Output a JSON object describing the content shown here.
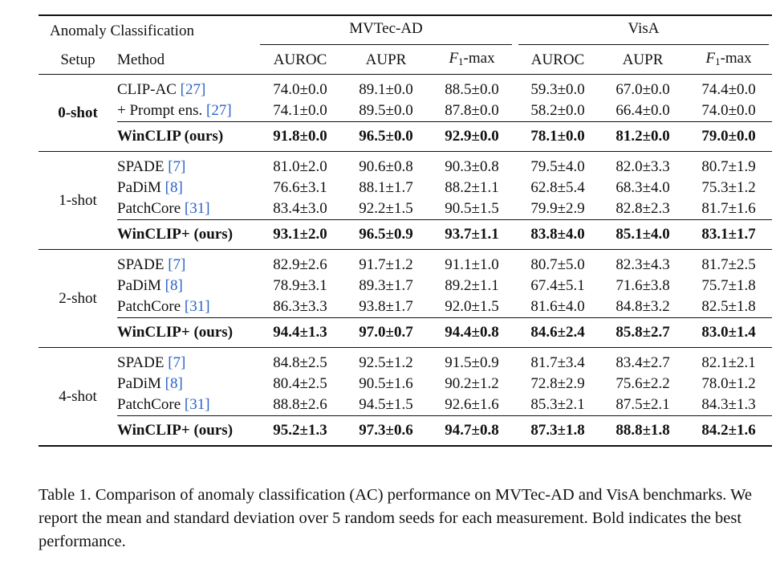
{
  "table": {
    "header": {
      "task_label": "Anomaly Classification",
      "dataset_1": "MVTec-AD",
      "dataset_2": "VisA",
      "setup_label": "Setup",
      "method_label": "Method",
      "metric_auroc": "AUROC",
      "metric_aupr": "AUPR",
      "metric_f1_base": "F",
      "metric_f1_sub": "1",
      "metric_f1_suffix": "-max"
    },
    "groups": [
      {
        "setup": "0-shot",
        "setup_bold": true,
        "rows": [
          {
            "method": "CLIP-AC ",
            "cite": "[27]",
            "vals": [
              "74.0±0.0",
              "89.1±0.0",
              "88.5±0.0",
              "59.3±0.0",
              "67.0±0.0",
              "74.4±0.0"
            ]
          },
          {
            "method": "+ Prompt ens. ",
            "cite": "[27]",
            "vals": [
              "74.1±0.0",
              "89.5±0.0",
              "87.8±0.0",
              "58.2±0.0",
              "66.4±0.0",
              "74.0±0.0"
            ]
          }
        ],
        "best": {
          "method": "WinCLIP (ours)",
          "vals": [
            "91.8±0.0",
            "96.5±0.0",
            "92.9±0.0",
            "78.1±0.0",
            "81.2±0.0",
            "79.0±0.0"
          ]
        }
      },
      {
        "setup": "1-shot",
        "setup_bold": false,
        "rows": [
          {
            "method": "SPADE ",
            "cite": "[7]",
            "vals": [
              "81.0±2.0",
              "90.6±0.8",
              "90.3±0.8",
              "79.5±4.0",
              "82.0±3.3",
              "80.7±1.9"
            ]
          },
          {
            "method": "PaDiM ",
            "cite": "[8]",
            "vals": [
              "76.6±3.1",
              "88.1±1.7",
              "88.2±1.1",
              "62.8±5.4",
              "68.3±4.0",
              "75.3±1.2"
            ]
          },
          {
            "method": "PatchCore ",
            "cite": "[31]",
            "vals": [
              "83.4±3.0",
              "92.2±1.5",
              "90.5±1.5",
              "79.9±2.9",
              "82.8±2.3",
              "81.7±1.6"
            ]
          }
        ],
        "best": {
          "method": "WinCLIP+ (ours)",
          "vals": [
            "93.1±2.0",
            "96.5±0.9",
            "93.7±1.1",
            "83.8±4.0",
            "85.1±4.0",
            "83.1±1.7"
          ]
        }
      },
      {
        "setup": "2-shot",
        "setup_bold": false,
        "rows": [
          {
            "method": "SPADE ",
            "cite": "[7]",
            "vals": [
              "82.9±2.6",
              "91.7±1.2",
              "91.1±1.0",
              "80.7±5.0",
              "82.3±4.3",
              "81.7±2.5"
            ]
          },
          {
            "method": "PaDiM ",
            "cite": "[8]",
            "vals": [
              "78.9±3.1",
              "89.3±1.7",
              "89.2±1.1",
              "67.4±5.1",
              "71.6±3.8",
              "75.7±1.8"
            ]
          },
          {
            "method": "PatchCore ",
            "cite": "[31]",
            "vals": [
              "86.3±3.3",
              "93.8±1.7",
              "92.0±1.5",
              "81.6±4.0",
              "84.8±3.2",
              "82.5±1.8"
            ]
          }
        ],
        "best": {
          "method": "WinCLIP+ (ours)",
          "vals": [
            "94.4±1.3",
            "97.0±0.7",
            "94.4±0.8",
            "84.6±2.4",
            "85.8±2.7",
            "83.0±1.4"
          ]
        }
      },
      {
        "setup": "4-shot",
        "setup_bold": false,
        "rows": [
          {
            "method": "SPADE ",
            "cite": "[7]",
            "vals": [
              "84.8±2.5",
              "92.5±1.2",
              "91.5±0.9",
              "81.7±3.4",
              "83.4±2.7",
              "82.1±2.1"
            ]
          },
          {
            "method": "PaDiM ",
            "cite": "[8]",
            "vals": [
              "80.4±2.5",
              "90.5±1.6",
              "90.2±1.2",
              "72.8±2.9",
              "75.6±2.2",
              "78.0±1.2"
            ]
          },
          {
            "method": "PatchCore ",
            "cite": "[31]",
            "vals": [
              "88.8±2.6",
              "94.5±1.5",
              "92.6±1.6",
              "85.3±2.1",
              "87.5±2.1",
              "84.3±1.3"
            ]
          }
        ],
        "best": {
          "method": "WinCLIP+ (ours)",
          "vals": [
            "95.2±1.3",
            "97.3±0.6",
            "94.7±0.8",
            "87.3±1.8",
            "88.8±1.8",
            "84.2±1.6"
          ]
        }
      }
    ]
  },
  "caption": {
    "text": "Table 1. Comparison of anomaly classification (AC) performance on MVTec-AD and VisA benchmarks. We report the mean and standard deviation over 5 random seeds for each measurement. Bold indicates the best performance."
  },
  "colors": {
    "citation_link": "#2a63c4",
    "text": "#111111"
  }
}
